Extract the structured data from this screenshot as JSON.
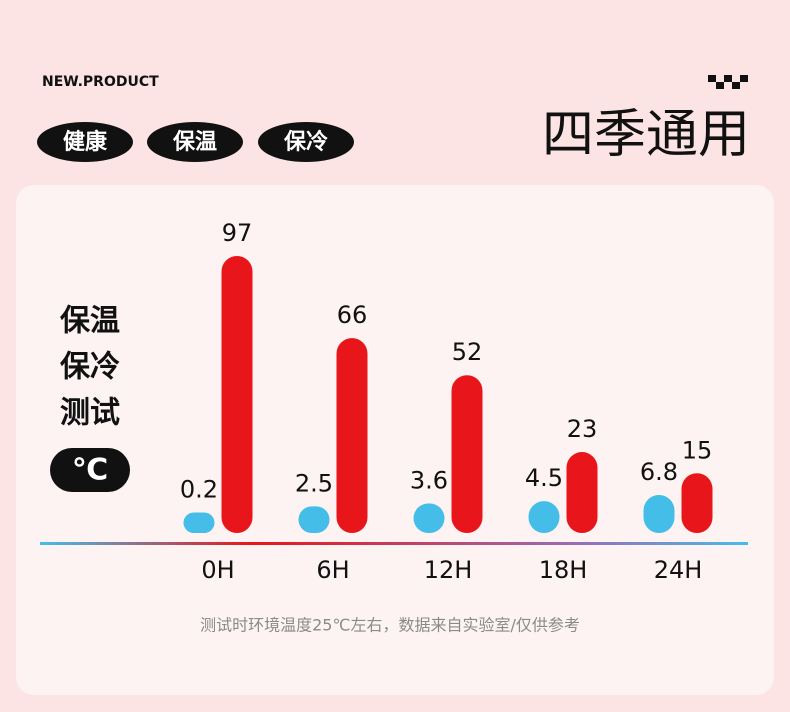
{
  "header": {
    "tag": "NEW.PRODUCT",
    "badges": [
      "健康",
      "保温",
      "保冷"
    ],
    "title": "四季通用"
  },
  "side_label": {
    "lines": [
      "保温",
      "保冷",
      "测试"
    ],
    "unit": "℃"
  },
  "chart_data": {
    "type": "bar",
    "categories": [
      "0H",
      "6H",
      "12H",
      "18H",
      "24H"
    ],
    "series": [
      {
        "color": "#45bde9",
        "values": [
          0.2,
          2.5,
          3.6,
          4.5,
          6.8
        ]
      },
      {
        "color": "#e8161b",
        "values": [
          97,
          66,
          52,
          23,
          15
        ]
      }
    ],
    "note": "测试时环境温度25℃左右，数据来自实验室/仅供参考"
  }
}
